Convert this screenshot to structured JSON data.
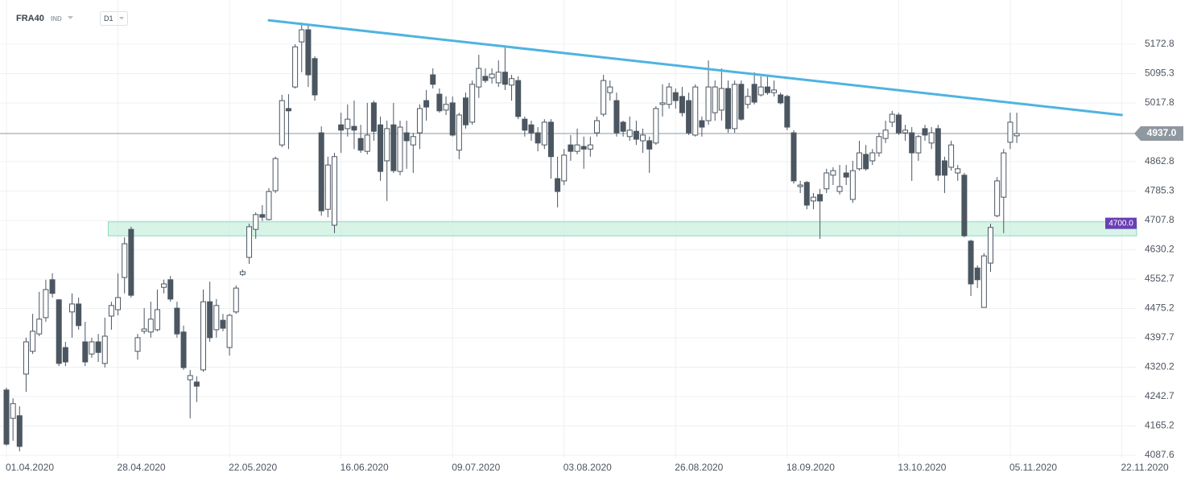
{
  "header": {
    "symbol": "FRA40",
    "market": "IND",
    "interval": "D1"
  },
  "chart_data": {
    "type": "candlestick",
    "x": [
      "2020-04-01",
      "2020-04-02",
      "2020-04-03",
      "2020-04-06",
      "2020-04-07",
      "2020-04-08",
      "2020-04-09",
      "2020-04-14",
      "2020-04-15",
      "2020-04-16",
      "2020-04-17",
      "2020-04-20",
      "2020-04-21",
      "2020-04-22",
      "2020-04-23",
      "2020-04-24",
      "2020-04-27",
      "2020-04-28",
      "2020-04-29",
      "2020-04-30",
      "2020-05-04",
      "2020-05-05",
      "2020-05-06",
      "2020-05-07",
      "2020-05-08",
      "2020-05-11",
      "2020-05-12",
      "2020-05-13",
      "2020-05-14",
      "2020-05-15",
      "2020-05-18",
      "2020-05-19",
      "2020-05-20",
      "2020-05-21",
      "2020-05-22",
      "2020-05-25",
      "2020-05-26",
      "2020-05-27",
      "2020-05-28",
      "2020-05-29",
      "2020-06-01",
      "2020-06-02",
      "2020-06-03",
      "2020-06-04",
      "2020-06-05",
      "2020-06-08",
      "2020-06-09",
      "2020-06-10",
      "2020-06-11",
      "2020-06-12",
      "2020-06-15",
      "2020-06-16",
      "2020-06-17",
      "2020-06-18",
      "2020-06-19",
      "2020-06-22",
      "2020-06-23",
      "2020-06-24",
      "2020-06-25",
      "2020-06-26",
      "2020-06-29",
      "2020-06-30",
      "2020-07-01",
      "2020-07-02",
      "2020-07-03",
      "2020-07-06",
      "2020-07-07",
      "2020-07-08",
      "2020-07-09",
      "2020-07-10",
      "2020-07-13",
      "2020-07-14",
      "2020-07-15",
      "2020-07-16",
      "2020-07-17",
      "2020-07-20",
      "2020-07-21",
      "2020-07-22",
      "2020-07-23",
      "2020-07-24",
      "2020-07-27",
      "2020-07-28",
      "2020-07-29",
      "2020-07-30",
      "2020-07-31",
      "2020-08-03",
      "2020-08-04",
      "2020-08-05",
      "2020-08-06",
      "2020-08-07",
      "2020-08-10",
      "2020-08-11",
      "2020-08-12",
      "2020-08-13",
      "2020-08-14",
      "2020-08-17",
      "2020-08-18",
      "2020-08-19",
      "2020-08-20",
      "2020-08-21",
      "2020-08-24",
      "2020-08-25",
      "2020-08-26",
      "2020-08-27",
      "2020-08-28",
      "2020-08-31",
      "2020-09-01",
      "2020-09-02",
      "2020-09-03",
      "2020-09-04",
      "2020-09-07",
      "2020-09-08",
      "2020-09-09",
      "2020-09-10",
      "2020-09-11",
      "2020-09-14",
      "2020-09-15",
      "2020-09-16",
      "2020-09-17",
      "2020-09-18",
      "2020-09-21",
      "2020-09-22",
      "2020-09-23",
      "2020-09-24",
      "2020-09-25",
      "2020-09-28",
      "2020-09-29",
      "2020-09-30",
      "2020-10-01",
      "2020-10-02",
      "2020-10-05",
      "2020-10-06",
      "2020-10-07",
      "2020-10-08",
      "2020-10-09",
      "2020-10-12",
      "2020-10-13",
      "2020-10-14",
      "2020-10-15",
      "2020-10-16",
      "2020-10-19",
      "2020-10-20",
      "2020-10-21",
      "2020-10-22",
      "2020-10-23",
      "2020-10-26",
      "2020-10-27",
      "2020-10-28",
      "2020-10-29",
      "2020-10-30",
      "2020-11-02",
      "2020-11-03",
      "2020-11-04",
      "2020-11-05",
      "2020-11-06"
    ],
    "open": [
      4260,
      4185,
      4192,
      4302,
      4362,
      4408,
      4451,
      4551,
      4498,
      4372,
      4466,
      4487,
      4387,
      4355,
      4387,
      4330,
      4455,
      4472,
      4557,
      4684,
      4362,
      4415,
      4413,
      4419,
      4531,
      4551,
      4476,
      4413,
      4287,
      4281,
      4313,
      4493,
      4419,
      4444,
      4372,
      4466,
      4565,
      4610,
      4684,
      4723,
      4710,
      4786,
      4907,
      5003,
      5060,
      5179,
      5211,
      5135,
      4939,
      4737,
      4695,
      4960,
      4950,
      4956,
      4924,
      4890,
      5018,
      4960,
      4865,
      4960,
      4837,
      4939,
      4907,
      4939,
      5024,
      5092,
      5041,
      4999,
      5018,
      4893,
      5031,
      4967,
      5060,
      5088,
      5084,
      5071,
      5099,
      5065,
      5077,
      4975,
      4960,
      4939,
      4907,
      4967,
      4818,
      4812,
      4907,
      4890,
      4903,
      4896,
      4939,
      4988,
      5045,
      5024,
      4967,
      4929,
      4943,
      4918,
      4918,
      4912,
      5014,
      5014,
      5045,
      5035,
      5024,
      4933,
      4971,
      4971,
      4992,
      4999,
      5056,
      4950,
      5067,
      5014,
      5067,
      5039,
      5060,
      5045,
      5039,
      5035,
      4939,
      4797,
      4808,
      4759,
      4776,
      4791,
      4827,
      4784,
      4833,
      4763,
      4844,
      4882,
      4865,
      4886,
      4924,
      4967,
      4986,
      4939,
      4939,
      4886,
      4950,
      4912,
      4950,
      4865,
      4848,
      4833,
      4827,
      4653,
      4582,
      4478,
      4595,
      4720,
      4769,
      4914,
      4931
    ],
    "high": [
      4266,
      4238,
      4217,
      4398,
      4461,
      4519,
      4551,
      4568,
      4500,
      4387,
      4515,
      4504,
      4440,
      4398,
      4408,
      4451,
      4493,
      4568,
      4663,
      4691,
      4408,
      4476,
      4493,
      4525,
      4551,
      4561,
      4493,
      4430,
      4313,
      4296,
      4525,
      4546,
      4500,
      4461,
      4461,
      4536,
      4578,
      4699,
      4729,
      4748,
      4793,
      4876,
      5039,
      5041,
      5173,
      5230,
      5226,
      5141,
      4956,
      4876,
      4886,
      4992,
      5014,
      5024,
      4960,
      5018,
      5024,
      4982,
      4971,
      5018,
      4971,
      4971,
      4939,
      5014,
      5052,
      5109,
      5056,
      5035,
      5035,
      4992,
      5045,
      5077,
      5145,
      5109,
      5109,
      5130,
      5166,
      5092,
      5088,
      4982,
      4971,
      4954,
      4975,
      4975,
      4876,
      4896,
      4933,
      4950,
      4929,
      4929,
      4982,
      5092,
      5077,
      5045,
      4971,
      4982,
      4971,
      4950,
      4929,
      5009,
      5067,
      5071,
      5056,
      5060,
      5045,
      5067,
      4982,
      5130,
      5077,
      5109,
      5077,
      5077,
      5077,
      5056,
      5099,
      5088,
      5088,
      5077,
      5045,
      5039,
      4946,
      4812,
      4812,
      4780,
      4791,
      4844,
      4848,
      4854,
      4854,
      4865,
      4918,
      4907,
      4896,
      4939,
      4971,
      4997,
      4992,
      4960,
      4954,
      4933,
      4960,
      4954,
      4960,
      4876,
      4918,
      4854,
      4833,
      4657,
      4589,
      4621,
      4699,
      4822,
      4896,
      4992,
      4992
    ],
    "low": [
      4113,
      4126,
      4098,
      4255,
      4355,
      4402,
      4440,
      4504,
      4323,
      4323,
      4398,
      4419,
      4323,
      4345,
      4334,
      4319,
      4419,
      4457,
      4515,
      4504,
      4340,
      4408,
      4398,
      4415,
      4515,
      4493,
      4398,
      4313,
      4185,
      4228,
      4308,
      4387,
      4398,
      4415,
      4351,
      4461,
      4561,
      4593,
      4659,
      4706,
      4708,
      4780,
      4901,
      4896,
      5056,
      5099,
      5060,
      5024,
      4720,
      4716,
      4674,
      4886,
      4929,
      4896,
      4886,
      4882,
      4918,
      4812,
      4759,
      4833,
      4827,
      4844,
      4833,
      4896,
      4971,
      5056,
      4992,
      4986,
      4929,
      4869,
      4950,
      4960,
      5031,
      5071,
      5069,
      5060,
      5052,
      5024,
      4975,
      4929,
      4918,
      4890,
      4896,
      4818,
      4742,
      4801,
      4865,
      4882,
      4844,
      4876,
      4929,
      4982,
      5024,
      4929,
      4929,
      4918,
      4907,
      4886,
      4833,
      4907,
      4982,
      5003,
      5003,
      4982,
      4933,
      4929,
      4929,
      4960,
      4971,
      4971,
      4939,
      4939,
      4971,
      5003,
      5014,
      5035,
      5039,
      5035,
      5014,
      4946,
      4805,
      4780,
      4737,
      4737,
      4659,
      4780,
      4801,
      4776,
      4801,
      4754,
      4839,
      4839,
      4854,
      4876,
      4912,
      4954,
      4933,
      4918,
      4812,
      4865,
      4918,
      4896,
      4812,
      4780,
      4839,
      4812,
      4663,
      4508,
      4529,
      4478,
      4572,
      4716,
      4674,
      4896,
      4912
    ],
    "close": [
      4117,
      4224,
      4111,
      4387,
      4415,
      4447,
      4525,
      4515,
      4330,
      4334,
      4487,
      4430,
      4334,
      4387,
      4359,
      4402,
      4483,
      4504,
      4646,
      4510,
      4398,
      4421,
      4447,
      4472,
      4540,
      4500,
      4408,
      4319,
      4298,
      4270,
      4493,
      4398,
      4483,
      4423,
      4457,
      4529,
      4572,
      4691,
      4723,
      4716,
      4784,
      4871,
      5024,
      4997,
      5166,
      5211,
      5092,
      5039,
      4733,
      4854,
      4876,
      4946,
      4975,
      4946,
      4893,
      4933,
      4943,
      4837,
      4950,
      4839,
      4954,
      4918,
      4929,
      5003,
      5007,
      5067,
      4997,
      5014,
      4933,
      4986,
      4960,
      5067,
      5109,
      5077,
      5094,
      5099,
      5067,
      5082,
      4982,
      4946,
      4939,
      4912,
      4967,
      4876,
      4784,
      4880,
      4890,
      4907,
      4896,
      4907,
      4971,
      5077,
      5060,
      4939,
      4943,
      4946,
      4922,
      4933,
      4896,
      5003,
      5018,
      5060,
      5024,
      4992,
      4939,
      5060,
      4954,
      5060,
      5060,
      5056,
      4950,
      5067,
      4975,
      5035,
      5020,
      5060,
      5045,
      5052,
      5018,
      4954,
      4812,
      4801,
      4748,
      4769,
      4759,
      4833,
      4839,
      4797,
      4822,
      4839,
      4886,
      4844,
      4886,
      4929,
      4946,
      4988,
      4939,
      4946,
      4886,
      4929,
      4933,
      4939,
      4827,
      4827,
      4907,
      4844,
      4667,
      4540,
      4551,
      4614,
      4689,
      4812,
      4886,
      4967,
      4937
    ],
    "up_color": "#ffffff",
    "down_color": "#4b5661",
    "edge_color": "#4b5661",
    "ylim": [
      4079.1,
      5289.6
    ],
    "yticks": [
      4087.6,
      4165.2,
      4242.7,
      4320.2,
      4397.7,
      4475.2,
      4552.7,
      4630.2,
      4707.8,
      4785.3,
      4862.8,
      5017.8,
      5095.3,
      5172.8
    ],
    "xticks": [
      {
        "value": "2020-04-01",
        "label": "01.04.2020"
      },
      {
        "value": "2020-04-28",
        "label": "28.04.2020"
      },
      {
        "value": "2020-05-22",
        "label": "22.05.2020"
      },
      {
        "value": "2020-06-16",
        "label": "16.06.2020"
      },
      {
        "value": "2020-07-09",
        "label": "09.07.2020"
      },
      {
        "value": "2020-08-03",
        "label": "03.08.2020"
      },
      {
        "value": "2020-08-26",
        "label": "26.08.2020"
      },
      {
        "value": "2020-09-18",
        "label": "18.09.2020"
      },
      {
        "value": "2020-10-13",
        "label": "13.10.2020"
      },
      {
        "value": "2020-11-05",
        "label": "05.11.2020"
      },
      {
        "value": "2020-11-22",
        "label": "22.11.2020"
      }
    ],
    "grid": true,
    "trendline": {
      "x": [
        "2020-06-01",
        "2020-11-22"
      ],
      "values": [
        5236,
        4986
      ],
      "color": "#4fb3e0"
    },
    "zone": {
      "start": "2020-04-27",
      "range": [
        4667,
        4704
      ],
      "color": "#c9f0df",
      "level": {
        "value": 4700,
        "label": "4700.0"
      },
      "label_color": "#6a3fb5"
    },
    "last_price": {
      "value": 4937,
      "label": "4937.0",
      "color": "#8f979f"
    }
  }
}
